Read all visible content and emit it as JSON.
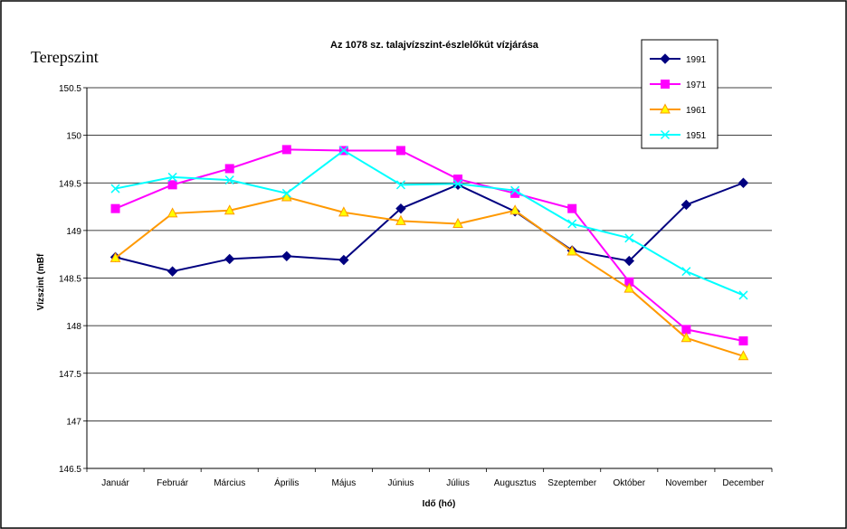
{
  "annotation": "Terepszint",
  "chart_data": {
    "type": "line",
    "title": "Az 1078 sz. talajvízszint-észlelőkút vízjárása",
    "xlabel": "Idő (hó)",
    "ylabel": "Vízszint (mBf",
    "ylim": [
      146.5,
      150.5
    ],
    "yticks": [
      "146.5",
      "147",
      "147.5",
      "148",
      "148.5",
      "149",
      "149.5",
      "150",
      "150.5"
    ],
    "grid": "horizontal",
    "legend_position": "top-right",
    "categories": [
      "Január",
      "Február",
      "Március",
      "Április",
      "Május",
      "Június",
      "Július",
      "Augusztus",
      "Szeptember",
      "Október",
      "November",
      "December"
    ],
    "series": [
      {
        "name": "1991",
        "color": "#000080",
        "marker": "diamond",
        "values": [
          148.72,
          148.57,
          148.7,
          148.73,
          148.69,
          149.23,
          149.48,
          149.2,
          148.79,
          148.68,
          149.27,
          149.5
        ]
      },
      {
        "name": "1971",
        "color": "#ff00ff",
        "marker": "square",
        "values": [
          149.23,
          149.48,
          149.65,
          149.85,
          149.84,
          149.84,
          149.54,
          149.39,
          149.23,
          148.46,
          147.96,
          147.84
        ]
      },
      {
        "name": "1961",
        "color": "#ff9900",
        "marker": "triangle",
        "values": [
          148.71,
          149.18,
          149.21,
          149.35,
          149.19,
          149.1,
          149.07,
          149.21,
          148.78,
          148.39,
          147.87,
          147.68
        ]
      },
      {
        "name": "1951",
        "color": "#00ffff",
        "marker": "x",
        "values": [
          149.44,
          149.56,
          149.53,
          149.39,
          149.84,
          149.48,
          149.49,
          149.42,
          149.07,
          148.92,
          148.57,
          148.32
        ]
      }
    ]
  }
}
